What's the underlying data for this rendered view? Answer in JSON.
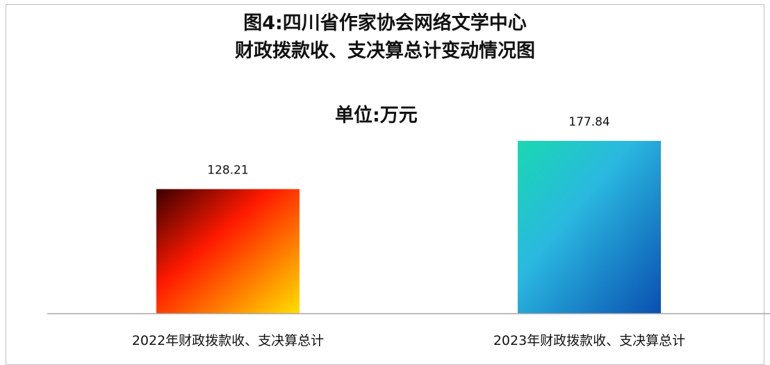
{
  "chart_data": {
    "type": "bar",
    "title": [
      "图4:四川省作家协会网络文学中心",
      "财政拨款收、支决算总计变动情况图"
    ],
    "subtitle": "单位:万元",
    "categories": [
      "2022年财政拨款收、支决算总计",
      "2023年财政拨款收、支决算总计"
    ],
    "values": [
      128.21,
      177.84
    ],
    "value_labels": [
      "128.21",
      "177.84"
    ],
    "ylim": [
      0,
      200
    ],
    "grid": false,
    "legend": "none",
    "bar_gradients": [
      {
        "from": "#3a0000",
        "mid": "#ff1a00",
        "to": "#ffe000"
      },
      {
        "from": "#19d8b0",
        "mid": "#2ab8e0",
        "to": "#0a4fb0"
      }
    ],
    "axis_color": "#a6a6a6"
  }
}
